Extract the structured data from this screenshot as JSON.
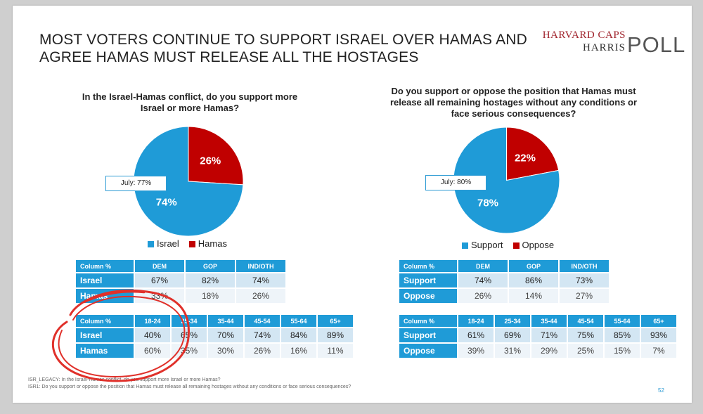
{
  "headline": {
    "line1": "MOST VOTERS CONTINUE TO SUPPORT ISRAEL OVER HAMAS AND",
    "line2": "AGREE HAMAS MUST RELEASE ALL THE HOSTAGES"
  },
  "logo": {
    "line1": "HARVARD CAPS",
    "line2": "HARRIS",
    "line3": "POLL"
  },
  "colors": {
    "blue": "#1f9bd7",
    "red": "#c00000"
  },
  "chart_data": [
    {
      "type": "pie",
      "title": "In the Israel-Hamas conflict, do you support more Israel or more Hamas?",
      "categories": [
        "Israel",
        "Hamas"
      ],
      "values": [
        74,
        26
      ],
      "value_labels": [
        "74%",
        "26%"
      ],
      "colors": [
        "#1f9bd7",
        "#c00000"
      ],
      "annotation": "July: 77%",
      "legend": "bottom"
    },
    {
      "type": "pie",
      "title": "Do you support or oppose the position that Hamas must release all remaining hostages without any conditions or face serious consequences?",
      "categories": [
        "Support",
        "Oppose"
      ],
      "values": [
        78,
        22
      ],
      "value_labels": [
        "78%",
        "22%"
      ],
      "colors": [
        "#1f9bd7",
        "#c00000"
      ],
      "annotation": "July: 80%",
      "legend": "bottom"
    },
    {
      "type": "table",
      "header": [
        "Column %",
        "DEM",
        "GOP",
        "IND/OTH"
      ],
      "rows": [
        [
          "Israel",
          "67%",
          "82%",
          "74%"
        ],
        [
          "Hamas",
          "33%",
          "18%",
          "26%"
        ]
      ]
    },
    {
      "type": "table",
      "header": [
        "Column %",
        "18-24",
        "25-34",
        "35-44",
        "45-54",
        "55-64",
        "65+"
      ],
      "rows": [
        [
          "Israel",
          "40%",
          "65%",
          "70%",
          "74%",
          "84%",
          "89%"
        ],
        [
          "Hamas",
          "60%",
          "35%",
          "30%",
          "26%",
          "16%",
          "11%"
        ]
      ]
    },
    {
      "type": "table",
      "header": [
        "Column %",
        "DEM",
        "GOP",
        "IND/OTH"
      ],
      "rows": [
        [
          "Support",
          "74%",
          "86%",
          "73%"
        ],
        [
          "Oppose",
          "26%",
          "14%",
          "27%"
        ]
      ]
    },
    {
      "type": "table",
      "header": [
        "Column %",
        "18-24",
        "25-34",
        "35-44",
        "45-54",
        "55-64",
        "65+"
      ],
      "rows": [
        [
          "Support",
          "61%",
          "69%",
          "71%",
          "75%",
          "85%",
          "93%"
        ],
        [
          "Oppose",
          "39%",
          "31%",
          "29%",
          "25%",
          "15%",
          "7%"
        ]
      ]
    }
  ],
  "footnotes": {
    "line1": "ISR_LEGACY: In the Israel-Hamas conflict, do you support more Israel or more Hamas?",
    "line2": "ISR1: Do you support or oppose the position that Hamas must release all remaining hostages without any conditions or face serious consequences?"
  },
  "page_number": "52"
}
